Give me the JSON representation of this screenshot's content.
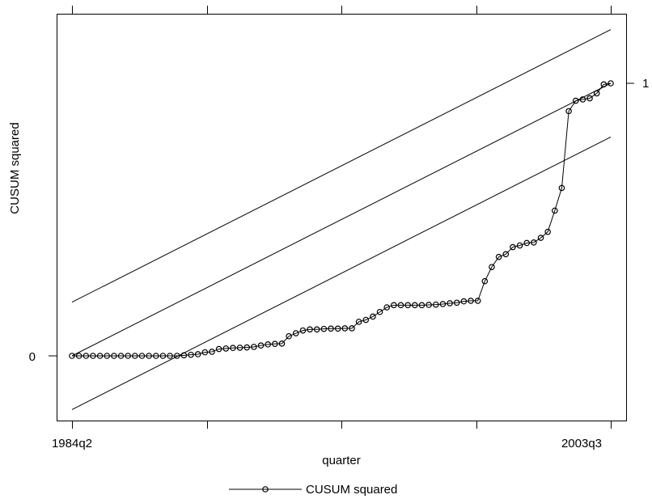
{
  "chart_data": {
    "type": "line",
    "title": "",
    "xlabel": "quarter",
    "ylabel": "CUSUM squared",
    "x_range": [
      "1984q2",
      "2003q3"
    ],
    "x_tick_labels": [
      "1984q2",
      "2003q3"
    ],
    "left_y_tick_labels": [
      "0"
    ],
    "right_y_tick_labels": [
      "1"
    ],
    "ylim": [
      -0.2,
      1.28
    ],
    "grid": false,
    "legend": {
      "position": "bottom",
      "entries": [
        "CUSUM squared"
      ]
    },
    "series": [
      {
        "name": "CUSUM squared",
        "marker": "circle",
        "values": [
          0.0,
          0.0,
          0.0,
          0.0,
          0.0,
          0.0,
          0.0,
          0.0,
          0.0,
          0.0,
          0.0,
          0.0,
          0.0,
          0.0,
          0.0,
          0.0,
          0.002,
          0.004,
          0.006,
          0.013,
          0.015,
          0.025,
          0.027,
          0.029,
          0.03,
          0.031,
          0.033,
          0.038,
          0.042,
          0.044,
          0.045,
          0.072,
          0.083,
          0.093,
          0.097,
          0.097,
          0.099,
          0.1,
          0.1,
          0.101,
          0.101,
          0.125,
          0.132,
          0.144,
          0.161,
          0.178,
          0.186,
          0.186,
          0.186,
          0.186,
          0.186,
          0.187,
          0.188,
          0.19,
          0.193,
          0.195,
          0.2,
          0.202,
          0.202,
          0.274,
          0.326,
          0.363,
          0.373,
          0.399,
          0.405,
          0.414,
          0.416,
          0.433,
          0.455,
          0.533,
          0.616,
          0.898,
          0.936,
          0.941,
          0.945,
          0.963,
          0.996,
          1.0
        ]
      }
    ],
    "reference_lines": [
      {
        "role": "expected",
        "from": 0.0,
        "to": 1.0
      },
      {
        "role": "upper bound",
        "from": 0.197,
        "to": 1.197
      },
      {
        "role": "lower bound",
        "from": -0.197,
        "to": 0.803
      }
    ]
  }
}
